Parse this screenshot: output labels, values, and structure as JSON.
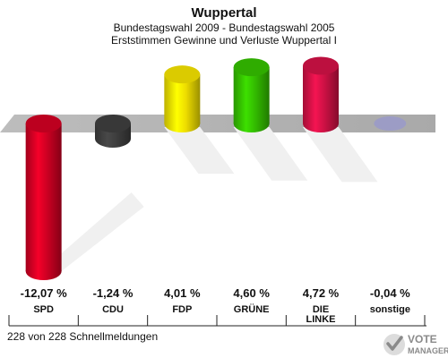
{
  "chart_data": {
    "type": "bar",
    "title": "Wuppertal",
    "subtitle_1": "Bundestagswahl 2009 - Bundestagswahl 2005",
    "subtitle_2": "Erststimmen Gewinne und Verluste Wuppertal I",
    "categories": [
      {
        "lines": [
          "SPD"
        ]
      },
      {
        "lines": [
          "CDU"
        ]
      },
      {
        "lines": [
          "FDP"
        ]
      },
      {
        "lines": [
          "GRÜNE"
        ]
      },
      {
        "lines": [
          "DIE",
          "LINKE"
        ]
      },
      {
        "lines": [
          "sonstige"
        ]
      }
    ],
    "values": [
      -12.07,
      -1.24,
      4.01,
      4.6,
      4.72,
      -0.04
    ],
    "value_labels": [
      "-12,07 %",
      "-1,24 %",
      "4,01 %",
      "4,60 %",
      "4,72 %",
      "-0,04 %"
    ],
    "colors": [
      "#cc0022",
      "#3d3d3d",
      "#eedd00",
      "#33bb00",
      "#cc1144",
      "#9999cc"
    ],
    "ylim": [
      -12.07,
      4.72
    ]
  },
  "footer": "228 von 228 Schnellmeldungen",
  "logo": {
    "line1": "VOTE",
    "line2": "MANAGER"
  }
}
